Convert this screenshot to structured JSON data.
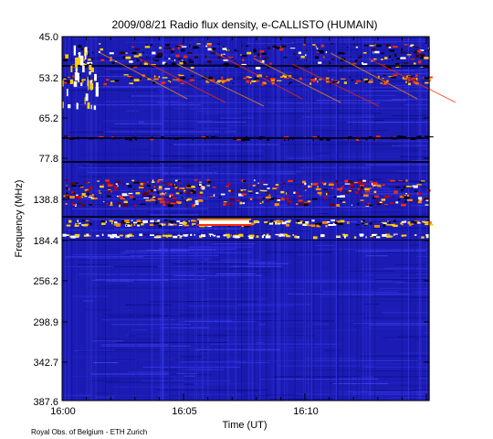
{
  "chart_data": {
    "type": "heatmap",
    "title": "2009/08/21  Radio flux density, e-CALLISTO (HUMAIN)",
    "xlabel": "Time (UT)",
    "ylabel": "Frequency (MHz)",
    "x_ticks": [
      "16:00",
      "16:05",
      "16:10"
    ],
    "y_ticks": [
      "45.0",
      "53.2",
      "65.2",
      "77.8",
      "138.8",
      "184.4",
      "256.2",
      "298.9",
      "342.7",
      "387.6"
    ],
    "colormap": "blue-red-yellow-white (low to high intensity)",
    "background_color": "#1c1cb4",
    "grid": false,
    "features": [
      "intense broadband emission near 138.8 MHz",
      "persistent interference lines near 53.2 MHz and 184.4 MHz",
      "narrowband emission burst near 16:06 just above 184.4 MHz"
    ]
  },
  "footer": {
    "credit": "Royal Obs. of Belgium - ETH Zurich"
  }
}
